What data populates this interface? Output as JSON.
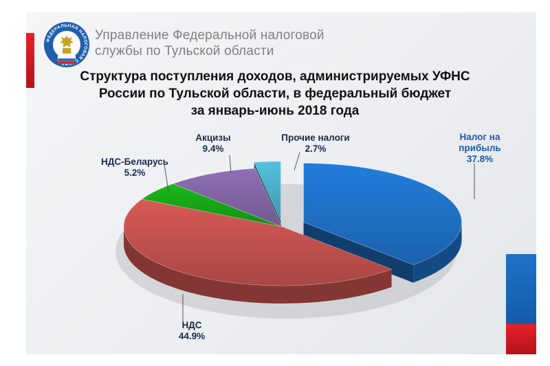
{
  "header": {
    "org_line1": "Управление Федеральной налоговой",
    "org_line2": "службы по Тульской области",
    "emblem_text": "ФЕДЕРАЛЬНАЯ НАЛОГОВАЯ СЛУЖБА"
  },
  "colors": {
    "accent_red": "#e8202a",
    "accent_blue": "#1f72c8"
  },
  "chart_data": {
    "type": "pie",
    "title": [
      "Структура поступления доходов, администрируемых УФНС",
      "России по Тульской области, в федеральный бюджет",
      "за  январь-июнь 2018 года"
    ],
    "unit": "%",
    "slices": [
      {
        "name_lines": [
          "Налог на",
          "прибыль"
        ],
        "value": 37.8,
        "label": "37.8%",
        "color": "#1f6fc4",
        "exploded": true
      },
      {
        "name_lines": [
          "НДС"
        ],
        "value": 44.9,
        "label": "44.9%",
        "color": "#c0504d",
        "exploded": false
      },
      {
        "name_lines": [
          "НДС-Беларусь"
        ],
        "value": 5.2,
        "label": "5.2%",
        "color": "#16a416",
        "exploded": false
      },
      {
        "name_lines": [
          "Акцизы"
        ],
        "value": 9.4,
        "label": "9.4%",
        "color": "#8064a2",
        "exploded": false
      },
      {
        "name_lines": [
          "Прочие налоги"
        ],
        "value": 2.7,
        "label": "2.7%",
        "color": "#4bacc6",
        "exploded": true
      }
    ]
  }
}
